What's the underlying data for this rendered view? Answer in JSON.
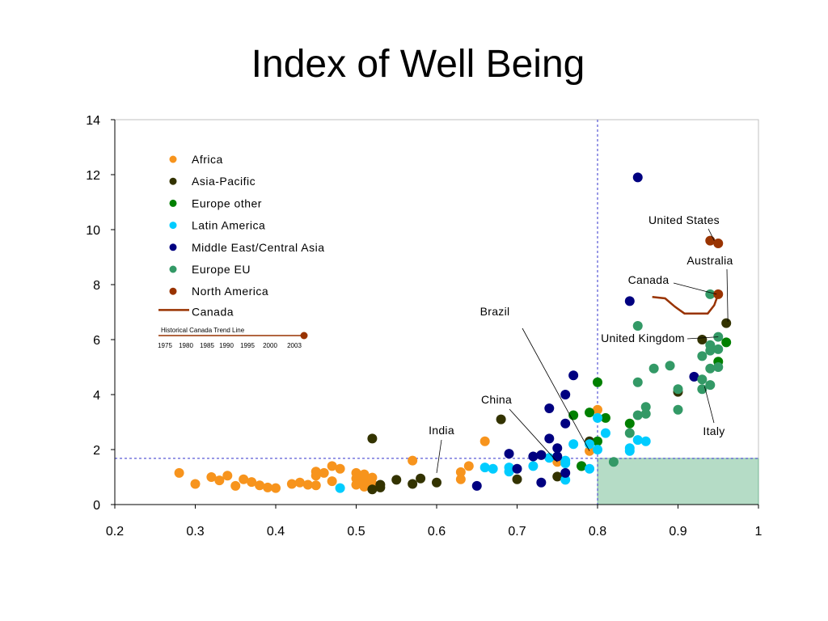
{
  "chart_data": {
    "type": "scatter",
    "title": "Index of Well Being",
    "xlim": [
      0.2,
      1
    ],
    "ylim": [
      0,
      14
    ],
    "x_ticks": [
      "0.2",
      "0.3",
      "0.4",
      "0.5",
      "0.6",
      "0.7",
      "0.8",
      "0.9",
      "1"
    ],
    "y_ticks": [
      "0",
      "2",
      "4",
      "6",
      "8",
      "10",
      "12",
      "14"
    ],
    "grid": false,
    "legend_position": "top-left",
    "reference_lines": {
      "x": 0.8,
      "y": 1.68
    },
    "shaded_region": {
      "x": [
        0.8,
        1
      ],
      "y": [
        0,
        1.68
      ],
      "color": "#b5dcc6"
    },
    "series": [
      {
        "name": "Africa",
        "color": "#f7941d",
        "points": [
          [
            0.28,
            1.15
          ],
          [
            0.3,
            0.75
          ],
          [
            0.32,
            1.0
          ],
          [
            0.33,
            0.88
          ],
          [
            0.34,
            1.05
          ],
          [
            0.35,
            0.68
          ],
          [
            0.36,
            0.92
          ],
          [
            0.37,
            0.82
          ],
          [
            0.38,
            0.7
          ],
          [
            0.39,
            0.62
          ],
          [
            0.4,
            0.6
          ],
          [
            0.42,
            0.75
          ],
          [
            0.43,
            0.8
          ],
          [
            0.44,
            0.72
          ],
          [
            0.45,
            0.7
          ],
          [
            0.45,
            1.2
          ],
          [
            0.45,
            1.05
          ],
          [
            0.46,
            1.15
          ],
          [
            0.47,
            1.4
          ],
          [
            0.47,
            0.85
          ],
          [
            0.48,
            1.3
          ],
          [
            0.5,
            1.15
          ],
          [
            0.5,
            0.95
          ],
          [
            0.5,
            0.72
          ],
          [
            0.51,
            0.9
          ],
          [
            0.51,
            1.1
          ],
          [
            0.51,
            0.65
          ],
          [
            0.52,
            0.98
          ],
          [
            0.52,
            0.75
          ],
          [
            0.57,
            1.6
          ],
          [
            0.63,
            1.18
          ],
          [
            0.63,
            0.92
          ],
          [
            0.64,
            1.4
          ],
          [
            0.66,
            2.3
          ],
          [
            0.75,
            1.55
          ],
          [
            0.79,
            1.95
          ],
          [
            0.8,
            3.45
          ]
        ]
      },
      {
        "name": "Asia-Pacific",
        "color": "#333300",
        "points": [
          [
            0.52,
            2.4
          ],
          [
            0.52,
            0.55
          ],
          [
            0.53,
            0.72
          ],
          [
            0.53,
            0.62
          ],
          [
            0.55,
            0.9
          ],
          [
            0.57,
            0.75
          ],
          [
            0.58,
            0.95
          ],
          [
            0.6,
            0.8
          ],
          [
            0.68,
            3.1
          ],
          [
            0.7,
            0.92
          ],
          [
            0.73,
            1.8
          ],
          [
            0.75,
            1.02
          ],
          [
            0.78,
            1.4
          ],
          [
            0.79,
            2.3
          ],
          [
            0.9,
            4.1
          ],
          [
            0.93,
            6.0
          ],
          [
            0.96,
            6.6
          ]
        ]
      },
      {
        "name": "Europe other",
        "color": "#008000",
        "points": [
          [
            0.77,
            3.25
          ],
          [
            0.78,
            1.4
          ],
          [
            0.79,
            3.35
          ],
          [
            0.8,
            4.45
          ],
          [
            0.8,
            2.3
          ],
          [
            0.81,
            3.15
          ],
          [
            0.84,
            2.95
          ],
          [
            0.95,
            5.2
          ],
          [
            0.96,
            5.9
          ]
        ]
      },
      {
        "name": "Latin America",
        "color": "#00ccff",
        "points": [
          [
            0.48,
            0.6
          ],
          [
            0.66,
            1.35
          ],
          [
            0.67,
            1.3
          ],
          [
            0.69,
            1.35
          ],
          [
            0.69,
            1.2
          ],
          [
            0.72,
            1.4
          ],
          [
            0.74,
            1.7
          ],
          [
            0.76,
            1.5
          ],
          [
            0.76,
            1.6
          ],
          [
            0.76,
            0.9
          ],
          [
            0.77,
            2.2
          ],
          [
            0.79,
            2.2
          ],
          [
            0.79,
            1.3
          ],
          [
            0.8,
            3.15
          ],
          [
            0.8,
            2.0
          ],
          [
            0.81,
            2.6
          ],
          [
            0.84,
            2.05
          ],
          [
            0.84,
            1.95
          ],
          [
            0.85,
            2.35
          ],
          [
            0.86,
            2.3
          ]
        ]
      },
      {
        "name": "Middle East/Central Asia",
        "color": "#000080",
        "points": [
          [
            0.65,
            0.68
          ],
          [
            0.69,
            1.85
          ],
          [
            0.7,
            1.3
          ],
          [
            0.72,
            1.75
          ],
          [
            0.73,
            0.8
          ],
          [
            0.73,
            1.8
          ],
          [
            0.74,
            3.5
          ],
          [
            0.74,
            2.4
          ],
          [
            0.75,
            2.05
          ],
          [
            0.75,
            1.75
          ],
          [
            0.76,
            4.0
          ],
          [
            0.76,
            2.95
          ],
          [
            0.76,
            1.15
          ],
          [
            0.77,
            4.7
          ],
          [
            0.84,
            7.4
          ],
          [
            0.85,
            11.9
          ],
          [
            0.92,
            4.65
          ]
        ]
      },
      {
        "name": "Europe EU",
        "color": "#339966",
        "points": [
          [
            0.82,
            1.55
          ],
          [
            0.84,
            2.6
          ],
          [
            0.85,
            6.5
          ],
          [
            0.85,
            4.45
          ],
          [
            0.85,
            3.25
          ],
          [
            0.86,
            3.55
          ],
          [
            0.86,
            3.3
          ],
          [
            0.87,
            4.95
          ],
          [
            0.89,
            5.05
          ],
          [
            0.9,
            3.45
          ],
          [
            0.9,
            4.2
          ],
          [
            0.93,
            5.4
          ],
          [
            0.93,
            4.55
          ],
          [
            0.93,
            4.2
          ],
          [
            0.94,
            7.65
          ],
          [
            0.94,
            5.8
          ],
          [
            0.94,
            5.6
          ],
          [
            0.94,
            4.95
          ],
          [
            0.94,
            4.35
          ],
          [
            0.95,
            6.1
          ],
          [
            0.95,
            5.65
          ],
          [
            0.95,
            5.0
          ]
        ]
      },
      {
        "name": "North America",
        "color": "#993300",
        "points": [
          [
            0.94,
            9.6
          ],
          [
            0.95,
            9.5
          ],
          [
            0.95,
            7.65
          ]
        ]
      }
    ],
    "trend_line": {
      "name": "Canada",
      "color": "#993300",
      "points": [
        [
          0.868,
          7.55
        ],
        [
          0.884,
          7.5
        ],
        [
          0.896,
          7.2
        ],
        [
          0.908,
          6.95
        ],
        [
          0.918,
          6.95
        ],
        [
          0.93,
          6.95
        ],
        [
          0.937,
          6.95
        ],
        [
          0.945,
          7.25
        ],
        [
          0.95,
          7.65
        ]
      ]
    },
    "legend_trend_caption": "Historical Canada Trend Line",
    "legend_trend_years": [
      "1975",
      "1980",
      "1985",
      "1990",
      "1995",
      "2000",
      "2003"
    ],
    "annotations": [
      {
        "text": "United States",
        "point": [
          0.945,
          9.6
        ]
      },
      {
        "text": "Australia",
        "point": [
          0.962,
          6.65
        ]
      },
      {
        "text": "Canada",
        "point": [
          0.948,
          7.65
        ]
      },
      {
        "text": "Brazil",
        "point": [
          0.79,
          1.95
        ]
      },
      {
        "text": "United Kingdom",
        "point": [
          0.95,
          6.1
        ]
      },
      {
        "text": "China",
        "point": [
          0.75,
          1.55
        ]
      },
      {
        "text": "India",
        "point": [
          0.6,
          1.15
        ]
      },
      {
        "text": "Italy",
        "point": [
          0.933,
          4.3
        ]
      }
    ]
  }
}
